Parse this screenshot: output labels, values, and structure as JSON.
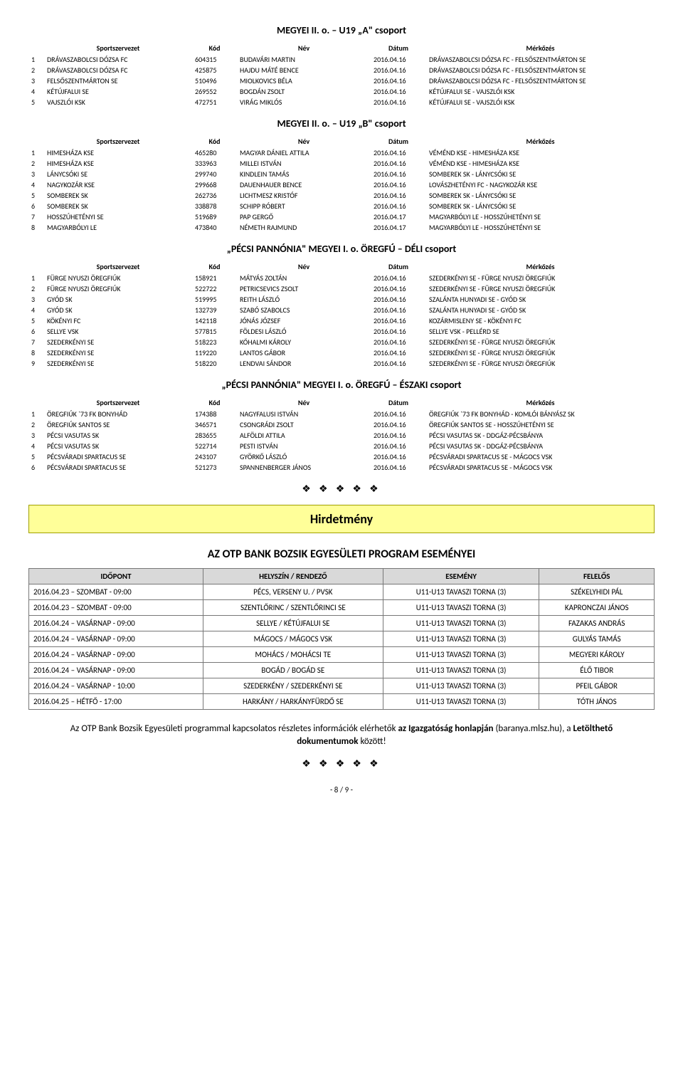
{
  "sections": [
    {
      "title": "MEGYEI II. o. – U19 „A\" csoport",
      "headers": [
        "Sportszervezet",
        "Kód",
        "Név",
        "Dátum",
        "Mérkőzés"
      ],
      "rows": [
        [
          "1",
          "DRÁVASZABOLCSI DÓZSA FC",
          "604315",
          "BUDAVÁRI MARTIN",
          "2016.04.16",
          "DRÁVASZABOLCSI DÓZSA FC - FELSŐSZENTMÁRTON SE"
        ],
        [
          "2",
          "DRÁVASZABOLCSI DÓZSA FC",
          "425875",
          "HAJDU MÁTÉ BENCE",
          "2016.04.16",
          "DRÁVASZABOLCSI DÓZSA FC - FELSŐSZENTMÁRTON SE"
        ],
        [
          "3",
          "FELSŐSZENTMÁRTON SE",
          "510496",
          "MIOLKOVICS BÉLA",
          "2016.04.16",
          "DRÁVASZABOLCSI DÓZSA FC - FELSŐSZENTMÁRTON SE"
        ],
        [
          "4",
          "KÉTÚJFALUI SE",
          "269552",
          "BOGDÁN ZSOLT",
          "2016.04.16",
          "KÉTÚJFALUI SE - VAJSZLÓI KSK"
        ],
        [
          "5",
          "VAJSZLÓI KSK",
          "472751",
          "VIRÁG MIKLÓS",
          "2016.04.16",
          "KÉTÚJFALUI SE - VAJSZLÓI KSK"
        ]
      ]
    },
    {
      "title": "MEGYEI II. o. – U19 „B\" csoport",
      "headers": [
        "Sportszervezet",
        "Kód",
        "Név",
        "Dátum",
        "Mérkőzés"
      ],
      "rows": [
        [
          "1",
          "HIMESHÁZA KSE",
          "465280",
          "MAGYAR DÁNIEL ATTILA",
          "2016.04.16",
          "VÉMÉND KSE - HIMESHÁZA KSE"
        ],
        [
          "2",
          "HIMESHÁZA KSE",
          "333963",
          "MILLEI ISTVÁN",
          "2016.04.16",
          "VÉMÉND KSE - HIMESHÁZA KSE"
        ],
        [
          "3",
          "LÁNYCSÓKI SE",
          "299740",
          "KINDLEIN TAMÁS",
          "2016.04.16",
          "SOMBEREK SK - LÁNYCSÓKI SE"
        ],
        [
          "4",
          "NAGYKOZÁR KSE",
          "299668",
          "DAUENHAUER BENCE",
          "2016.04.16",
          "LOVÁSZHETÉNYI FC - NAGYKOZÁR KSE"
        ],
        [
          "5",
          "SOMBEREK SK",
          "262736",
          "LICHTMESZ KRISTÓF",
          "2016.04.16",
          "SOMBEREK SK - LÁNYCSÓKI SE"
        ],
        [
          "6",
          "SOMBEREK SK",
          "338878",
          "SCHIPP RÓBERT",
          "2016.04.16",
          "SOMBEREK SK - LÁNYCSÓKI SE"
        ],
        [
          "7",
          "HOSSZÚHETÉNYI SE",
          "519689",
          "PAP GERGŐ",
          "2016.04.17",
          "MAGYARBÓLYI LE - HOSSZÚHETÉNYI SE"
        ],
        [
          "8",
          "MAGYARBÓLYI LE",
          "473840",
          "NÉMETH RAJMUND",
          "2016.04.17",
          "MAGYARBÓLYI LE - HOSSZÚHETÉNYI SE"
        ]
      ]
    },
    {
      "title": "„PÉCSI PANNÓNIA\" MEGYEI I. o. ÖREGFÚ – DÉLI csoport",
      "headers": [
        "Sportszervezet",
        "Kód",
        "Név",
        "Dátum",
        "Mérkőzés"
      ],
      "rows": [
        [
          "1",
          "FÜRGE NYUSZI ÖREGFIÚK",
          "158921",
          "MÁTYÁS ZOLTÁN",
          "2016.04.16",
          "SZEDERKÉNYI SE - FÜRGE NYUSZI ÖREGFIÚK"
        ],
        [
          "2",
          "FÜRGE NYUSZI ÖREGFIÚK",
          "522722",
          "PETRICSEVICS ZSOLT",
          "2016.04.16",
          "SZEDERKÉNYI SE - FÜRGE NYUSZI ÖREGFIÚK"
        ],
        [
          "3",
          "GYÓD SK",
          "519995",
          "REITH LÁSZLÓ",
          "2016.04.16",
          "SZALÁNTA HUNYADI SE - GYÓD SK"
        ],
        [
          "4",
          "GYÓD SK",
          "132739",
          "SZABÓ SZABOLCS",
          "2016.04.16",
          "SZALÁNTA HUNYADI SE - GYÓD SK"
        ],
        [
          "5",
          "KÖKÉNYI FC",
          "142118",
          "JÓNÁS JÓZSEF",
          "2016.04.16",
          "KOZÁRMISLENY SE - KÖKÉNYI FC"
        ],
        [
          "6",
          "SELLYE VSK",
          "577815",
          "FÖLDESI LÁSZLÓ",
          "2016.04.16",
          "SELLYE VSK - PELLÉRD SE"
        ],
        [
          "7",
          "SZEDERKÉNYI SE",
          "518223",
          "KŐHALMI KÁROLY",
          "2016.04.16",
          "SZEDERKÉNYI SE - FÜRGE NYUSZI ÖREGFIÚK"
        ],
        [
          "8",
          "SZEDERKÉNYI SE",
          "119220",
          "LANTOS GÁBOR",
          "2016.04.16",
          "SZEDERKÉNYI SE - FÜRGE NYUSZI ÖREGFIÚK"
        ],
        [
          "9",
          "SZEDERKÉNYI SE",
          "518220",
          "LENDVAI SÁNDOR",
          "2016.04.16",
          "SZEDERKÉNYI SE - FÜRGE NYUSZI ÖREGFIÚK"
        ]
      ]
    },
    {
      "title": "„PÉCSI PANNÓNIA\" MEGYEI I. o. ÖREGFÚ – ÉSZAKI csoport",
      "headers": [
        "Sportszervezet",
        "Kód",
        "Név",
        "Dátum",
        "Mérkőzés"
      ],
      "rows": [
        [
          "1",
          "ÖREGFIÚK `73 FK BONYHÁD",
          "174388",
          "NAGYFALUSI ISTVÁN",
          "2016.04.16",
          "ÖREGFIÚK `73 FK BONYHÁD - KOMLÓI BÁNYÁSZ SK"
        ],
        [
          "2",
          "ÖREGFIÚK SANTOS SE",
          "346571",
          "CSONGRÁDI ZSOLT",
          "2016.04.16",
          "ÖREGFIÚK SANTOS SE - HOSSZÚHETÉNYI SE"
        ],
        [
          "3",
          "PÉCSI VASUTAS SK",
          "283655",
          "ALFÖLDI ATTILA",
          "2016.04.16",
          "PÉCSI VASUTAS SK - DDGÁZ-PÉCSBÁNYA"
        ],
        [
          "4",
          "PÉCSI VASUTAS SK",
          "522714",
          "PESTI ISTVÁN",
          "2016.04.16",
          "PÉCSI VASUTAS SK - DDGÁZ-PÉCSBÁNYA"
        ],
        [
          "5",
          "PÉCSVÁRADI SPARTACUS SE",
          "243107",
          "GYÖRKŐ LÁSZLÓ",
          "2016.04.16",
          "PÉCSVÁRADI SPARTACUS SE - MÁGOCS VSK"
        ],
        [
          "6",
          "PÉCSVÁRADI SPARTACUS SE",
          "521273",
          "SPANNENBERGER JÁNOS",
          "2016.04.16",
          "PÉCSVÁRADI SPARTACUS SE - MÁGOCS VSK"
        ]
      ]
    }
  ],
  "decor": "❖ ❖ ❖ ❖ ❖",
  "announcement_label": "Hirdetmény",
  "program_title": "AZ OTP BANK BOZSIK EGYESÜLETI PROGRAM ESEMÉNYEI",
  "schedule_headers": [
    "IDŐPONT",
    "HELYSZÍN / RENDEZŐ",
    "ESEMÉNY",
    "FELELŐS"
  ],
  "schedule_rows": [
    [
      "2016.04.23 – SZOMBAT - 09:00",
      "PÉCS, VERSENY U. / PVSK",
      "U11-U13 TAVASZI TORNA (3)",
      "SZÉKELYHIDI PÁL"
    ],
    [
      "2016.04.23 – SZOMBAT - 09:00",
      "SZENTLŐRINC / SZENTLŐRINCI SE",
      "U11-U13 TAVASZI TORNA (3)",
      "KAPRONCZAI JÁNOS"
    ],
    [
      "2016.04.24 – VASÁRNAP - 09:00",
      "SELLYE / KÉTÚJFALUI SE",
      "U11-U13 TAVASZI TORNA (3)",
      "FAZAKAS ANDRÁS"
    ],
    [
      "2016.04.24 – VASÁRNAP - 09:00",
      "MÁGOCS / MÁGOCS VSK",
      "U11-U13 TAVASZI TORNA (3)",
      "GULYÁS TAMÁS"
    ],
    [
      "2016.04.24 – VASÁRNAP - 09:00",
      "MOHÁCS / MOHÁCSI TE",
      "U11-U13 TAVASZI TORNA (3)",
      "MEGYERI KÁROLY"
    ],
    [
      "2016.04.24 – VASÁRNAP - 09:00",
      "BOGÁD / BOGÁD SE",
      "U11-U13 TAVASZI TORNA (3)",
      "ÉLŐ TIBOR"
    ],
    [
      "2016.04.24 – VASÁRNAP - 10:00",
      "SZEDERKÉNY / SZEDERKÉNYI SE",
      "U11-U13 TAVASZI TORNA (3)",
      "PFEIL GÁBOR"
    ],
    [
      "2016.04.25 – HÉTFŐ - 17:00",
      "HARKÁNY / HARKÁNYFÜRDŐ SE",
      "U11-U13 TAVASZI TORNA (3)",
      "TÓTH JÁNOS"
    ]
  ],
  "note_pre": "Az OTP Bank Bozsik Egyesületi programmal kapcsolatos részletes információk elérhetők ",
  "note_b1": "az Igazgatóság honlapján",
  "note_mid": " (baranya.mlsz.hu), a ",
  "note_b2": "Letölthető dokumentumok",
  "note_post": " között!",
  "pager": "- 8 / 9 -"
}
